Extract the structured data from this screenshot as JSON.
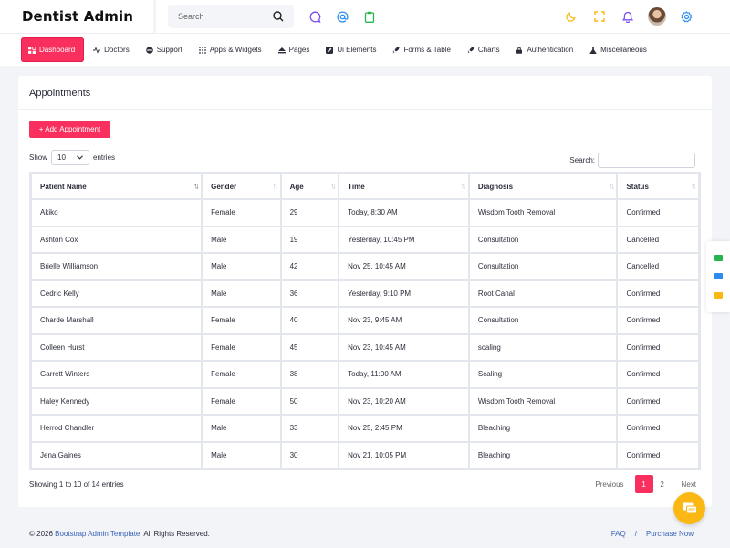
{
  "brand": "Dentist Admin",
  "search": {
    "placeholder": "Search"
  },
  "nav": [
    {
      "label": "Dashboard",
      "icon": "dashboard-icon",
      "active": true
    },
    {
      "label": "Doctors",
      "icon": "pulse-icon"
    },
    {
      "label": "Support",
      "icon": "support-icon"
    },
    {
      "label": "Apps & Widgets",
      "icon": "grid-icon"
    },
    {
      "label": "Pages",
      "icon": "pages-icon"
    },
    {
      "label": "Ui Elements",
      "icon": "pencil-icon"
    },
    {
      "label": "Forms & Table",
      "icon": "rocket-icon"
    },
    {
      "label": "Charts",
      "icon": "rocket-icon"
    },
    {
      "label": "Authentication",
      "icon": "lock-icon"
    },
    {
      "label": "Miscellaneous",
      "icon": "flask-icon"
    }
  ],
  "card": {
    "title": "Appointments",
    "add_button": "+ Add Appointment",
    "show_label": "Show",
    "entries_value": "10",
    "entries_label": "entries",
    "search_label": "Search:"
  },
  "table": {
    "headers": [
      "Patient Name",
      "Gender",
      "Age",
      "Time",
      "Diagnosis",
      "Status"
    ],
    "rows": [
      [
        "Akiko",
        "Female",
        "29",
        "Today, 8:30 AM",
        "Wisdom Tooth Removal",
        "Confirmed"
      ],
      [
        "Ashton Cox",
        "Male",
        "19",
        "Yesterday, 10:45 PM",
        "Consultation",
        "Cancelled"
      ],
      [
        "Brielle Williamson",
        "Male",
        "42",
        "Nov 25, 10:45 AM",
        "Consultation",
        "Cancelled"
      ],
      [
        "Cedric Kelly",
        "Male",
        "36",
        "Yesterday, 9:10 PM",
        "Root Canal",
        "Confirmed"
      ],
      [
        "Charde Marshall",
        "Female",
        "40",
        "Nov 23, 9:45 AM",
        "Consultation",
        "Confirmed"
      ],
      [
        "Colleen Hurst",
        "Female",
        "45",
        "Nov 23, 10:45 AM",
        "scaling",
        "Confirmed"
      ],
      [
        "Garrett Winters",
        "Female",
        "38",
        "Today, 11:00 AM",
        "Scaling",
        "Confirmed"
      ],
      [
        "Haley Kennedy",
        "Female",
        "50",
        "Nov 23, 10:20 AM",
        "Wisdom Tooth Removal",
        "Confirmed"
      ],
      [
        "Herrod Chandler",
        "Male",
        "33",
        "Nov 25, 2:45 PM",
        "Bleaching",
        "Confirmed"
      ],
      [
        "Jena Gaines",
        "Male",
        "30",
        "Nov 21, 10:05 PM",
        "Bleaching",
        "Confirmed"
      ]
    ]
  },
  "info": "Showing 1 to 10 of 14 entries",
  "pager": {
    "prev": "Previous",
    "pages": [
      "1",
      "2"
    ],
    "current": "1",
    "next": "Next"
  },
  "footer": {
    "prefix": "© 2026 ",
    "link": "Bootstrap Admin Template",
    "suffix": ". All Rights Reserved.",
    "faq": "FAQ",
    "sep": "/",
    "purchase": "Purchase Now"
  },
  "colors": {
    "accent": "#f9305e",
    "confirmed": "#27b44f",
    "cancelled": "#2d8cf0",
    "icon_purple": "#7b4ff0",
    "icon_gold": "#fbb815"
  }
}
